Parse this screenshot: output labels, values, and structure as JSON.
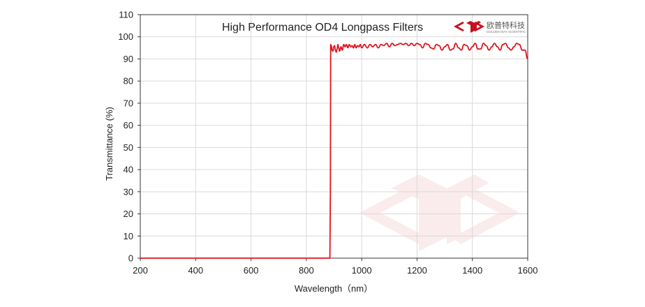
{
  "chart_data": {
    "type": "line",
    "title": "High Performance OD4 Longpass  Filters",
    "xlabel": "Wavelength（nm）",
    "ylabel": "Transmittance (%)",
    "xlim": [
      200,
      1600
    ],
    "ylim": [
      0,
      110
    ],
    "xticks": [
      200,
      400,
      600,
      800,
      1000,
      1200,
      1400,
      1600
    ],
    "yticks": [
      0,
      10,
      20,
      30,
      40,
      50,
      60,
      70,
      80,
      90,
      100,
      110
    ],
    "grid": true,
    "line_color": "#e0141e",
    "series": [
      {
        "x": [
          200,
          880,
          885,
          887,
          888,
          890,
          893,
          896,
          899,
          902,
          905,
          908,
          911,
          914,
          917,
          920,
          925,
          930,
          935,
          940,
          945,
          950,
          955,
          960,
          965,
          970,
          975,
          980,
          985,
          990,
          995,
          1000,
          1010,
          1020,
          1030,
          1040,
          1050,
          1060,
          1070,
          1080,
          1090,
          1100,
          1110,
          1120,
          1130,
          1140,
          1150,
          1160,
          1170,
          1180,
          1190,
          1200,
          1210,
          1220,
          1230,
          1240,
          1250,
          1260,
          1270,
          1280,
          1290,
          1300,
          1310,
          1320,
          1330,
          1340,
          1350,
          1360,
          1370,
          1380,
          1390,
          1400,
          1410,
          1420,
          1430,
          1440,
          1450,
          1460,
          1470,
          1480,
          1490,
          1500,
          1510,
          1520,
          1530,
          1540,
          1550,
          1560,
          1570,
          1580,
          1590,
          1600
        ],
        "y": [
          0,
          0,
          0,
          30,
          96.5,
          96,
          94,
          93.5,
          95.5,
          96,
          94,
          93,
          94.5,
          96.5,
          95,
          93.5,
          95.5,
          94,
          96.5,
          95.5,
          96.5,
          95,
          96.5,
          95.5,
          96,
          95,
          96.5,
          95,
          96,
          95.5,
          96.5,
          95,
          96.5,
          95,
          96.5,
          95.5,
          96.5,
          95,
          96.5,
          96,
          97,
          95.5,
          97,
          96,
          96.5,
          97,
          96.5,
          97,
          96,
          97,
          96,
          97,
          96.5,
          95,
          97,
          96.5,
          95,
          94.5,
          96.5,
          96,
          94,
          95.5,
          96.5,
          94,
          94.5,
          97,
          95,
          94,
          96.5,
          96,
          94,
          95.5,
          97,
          94.5,
          94.5,
          97,
          96,
          94,
          95.5,
          97,
          95.5,
          94,
          96.5,
          97,
          95,
          94,
          95.5,
          97,
          96.5,
          94,
          94,
          90
        ]
      }
    ]
  },
  "logo": {
    "cn_text": "欧普特科技",
    "en_text": "GOLDEN WAY SCIENTIFIC",
    "color": "#c8101e"
  }
}
